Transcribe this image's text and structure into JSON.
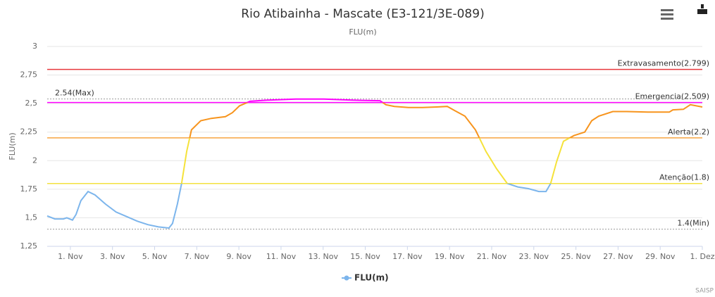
{
  "chart_data": {
    "type": "line",
    "title": "Rio Atibainha - Mascate (E3-121/3E-089)",
    "subtitle": "FLU(m)",
    "y_label": "FLU(m)",
    "credits": "SAISP",
    "xlim": [
      -0.1,
      31
    ],
    "xticks": [
      {
        "value": 1,
        "label": "1. Nov"
      },
      {
        "value": 3,
        "label": "3. Nov"
      },
      {
        "value": 5,
        "label": "5. Nov"
      },
      {
        "value": 7,
        "label": "7. Nov"
      },
      {
        "value": 9,
        "label": "9. Nov"
      },
      {
        "value": 11,
        "label": "11. Nov"
      },
      {
        "value": 13,
        "label": "13. Nov"
      },
      {
        "value": 15,
        "label": "15. Nov"
      },
      {
        "value": 17,
        "label": "17. Nov"
      },
      {
        "value": 19,
        "label": "19. Nov"
      },
      {
        "value": 21,
        "label": "21. Nov"
      },
      {
        "value": 23,
        "label": "23. Nov"
      },
      {
        "value": 25,
        "label": "25. Nov"
      },
      {
        "value": 27,
        "label": "27. Nov"
      },
      {
        "value": 29,
        "label": "29. Nov"
      },
      {
        "value": 31,
        "label": "1. Dez"
      }
    ],
    "ylim": [
      1.25,
      3
    ],
    "yticks": [
      {
        "value": 1.25,
        "label": "1,25"
      },
      {
        "value": 1.5,
        "label": "1,5"
      },
      {
        "value": 1.75,
        "label": "1,75"
      },
      2,
      {
        "value": 2.25,
        "label": "2,25"
      },
      {
        "value": 2.5,
        "label": "2,5"
      },
      {
        "value": 2.75,
        "label": "2,75"
      },
      3
    ],
    "grid": true,
    "plot_lines": [
      {
        "value": 2.799,
        "label": "Extravasamento(2.799)",
        "color": "#e8383d",
        "style": "solid",
        "align": "right"
      },
      {
        "value": 2.509,
        "label": "Emergencia(2.509)",
        "color": "#ff00ff",
        "style": "solid",
        "align": "right"
      },
      {
        "value": 2.2,
        "label": "Alerta(2.2)",
        "color": "#f7a540",
        "style": "solid",
        "align": "right"
      },
      {
        "value": 1.8,
        "label": "Atenção(1.8)",
        "color": "#f3e13f",
        "style": "solid",
        "align": "right"
      },
      {
        "value": 2.54,
        "label": "2.54(Max)",
        "color": "#999999",
        "style": "dotted",
        "align": "left"
      },
      {
        "value": 1.4,
        "label": "1.4(Min)",
        "color": "#999999",
        "style": "dotted",
        "align": "right"
      }
    ],
    "zones": [
      {
        "value": 1.8,
        "color": "#7cb5ec"
      },
      {
        "value": 2.2,
        "color": "#f5e23a"
      },
      {
        "value": 2.509,
        "color": "#f7941d"
      },
      {
        "color": "#ff00ff"
      }
    ],
    "series": [
      {
        "name": "FLU(m)",
        "color": "#7cb5ec",
        "x": [
          -0.1,
          0.26,
          0.67,
          0.83,
          1.1,
          1.27,
          1.5,
          1.84,
          2.17,
          2.67,
          3.17,
          3.68,
          4.18,
          4.68,
          5.18,
          5.68,
          5.85,
          6.08,
          6.28,
          6.52,
          6.75,
          7.19,
          7.69,
          8.36,
          8.69,
          9.03,
          9.53,
          10.36,
          11.7,
          13.04,
          14.38,
          15.7,
          15.98,
          16.38,
          17.05,
          17.72,
          18.39,
          18.89,
          19.23,
          19.73,
          20.23,
          20.73,
          21.23,
          21.74,
          22.24,
          22.74,
          23.24,
          23.58,
          23.8,
          24.08,
          24.41,
          24.91,
          25.42,
          25.75,
          26.08,
          26.75,
          27.42,
          28.42,
          29.43,
          29.6,
          30.1,
          30.43,
          31
        ],
        "values": [
          1.516,
          1.49,
          1.49,
          1.5,
          1.48,
          1.53,
          1.65,
          1.73,
          1.7,
          1.62,
          1.55,
          1.51,
          1.47,
          1.44,
          1.42,
          1.41,
          1.45,
          1.62,
          1.8,
          2.08,
          2.27,
          2.35,
          2.37,
          2.385,
          2.42,
          2.48,
          2.52,
          2.53,
          2.54,
          2.54,
          2.53,
          2.525,
          2.49,
          2.475,
          2.465,
          2.465,
          2.47,
          2.475,
          2.44,
          2.39,
          2.27,
          2.08,
          1.93,
          1.8,
          1.77,
          1.755,
          1.73,
          1.73,
          1.8,
          1.99,
          2.17,
          2.22,
          2.25,
          2.35,
          2.39,
          2.43,
          2.43,
          2.425,
          2.425,
          2.445,
          2.45,
          2.49,
          2.47
        ]
      }
    ]
  }
}
